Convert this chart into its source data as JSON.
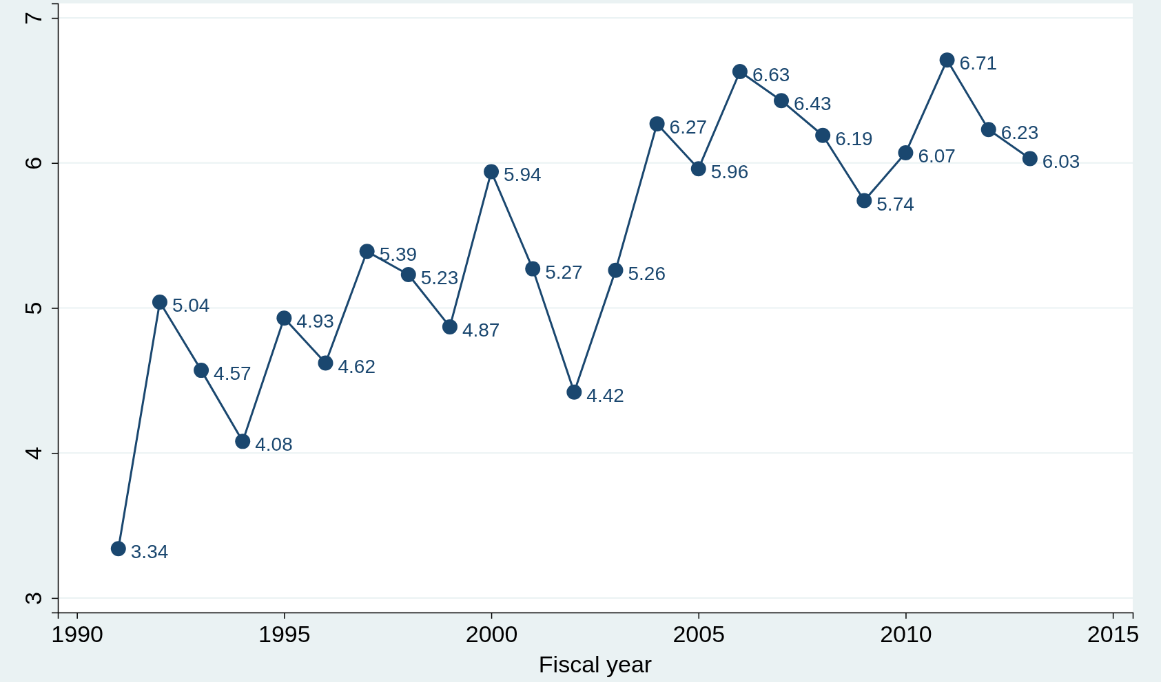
{
  "chart_data": {
    "type": "line",
    "xlabel": "Fiscal year",
    "x": [
      1991,
      1992,
      1993,
      1994,
      1995,
      1996,
      1997,
      1998,
      1999,
      2000,
      2001,
      2002,
      2003,
      2004,
      2005,
      2006,
      2007,
      2008,
      2009,
      2010,
      2011,
      2012,
      2013
    ],
    "series": [
      {
        "color": "#1a476f",
        "values": [
          3.34,
          5.04,
          4.57,
          4.08,
          4.93,
          4.62,
          5.39,
          5.23,
          4.87,
          5.94,
          5.27,
          4.42,
          5.26,
          6.27,
          5.96,
          6.63,
          6.43,
          6.19,
          5.74,
          6.07,
          6.71,
          6.23,
          6.03
        ]
      }
    ],
    "xlim": [
      1989.54,
      2015.48
    ],
    "xticks": [
      1990,
      1995,
      2000,
      2005,
      2010,
      2015
    ],
    "ylim": [
      2.9,
      7.1
    ],
    "yticks": [
      3,
      4,
      5,
      6,
      7
    ],
    "grid": "y",
    "marker": "circle",
    "line_style": "solid",
    "data_labels": true
  }
}
